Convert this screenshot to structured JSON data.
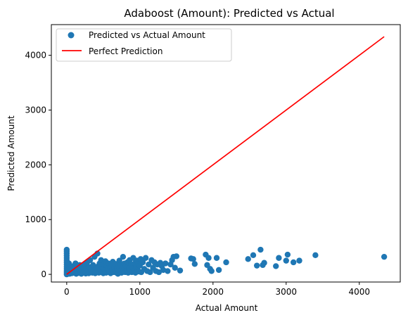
{
  "chart_data": {
    "type": "scatter",
    "title": "Adaboost (Amount): Predicted vs Actual",
    "xlabel": "Actual Amount",
    "ylabel": "Predicted Amount",
    "xlim": [
      -210,
      4560
    ],
    "ylim": [
      -140,
      4560
    ],
    "xticks": [
      0,
      1000,
      2000,
      3000,
      4000
    ],
    "yticks": [
      0,
      1000,
      2000,
      3000,
      4000
    ],
    "grid": false,
    "legend_position": "top-left",
    "series": [
      {
        "name": "Predicted vs Actual Amount",
        "kind": "scatter",
        "color": "#1f77b4",
        "points": [
          [
            0,
            0
          ],
          [
            0,
            30
          ],
          [
            0,
            60
          ],
          [
            0,
            100
          ],
          [
            0,
            140
          ],
          [
            0,
            180
          ],
          [
            0,
            220
          ],
          [
            0,
            260
          ],
          [
            0,
            300
          ],
          [
            0,
            340
          ],
          [
            0,
            380
          ],
          [
            0,
            420
          ],
          [
            0,
            450
          ],
          [
            10,
            15
          ],
          [
            20,
            80
          ],
          [
            30,
            200
          ],
          [
            40,
            10
          ],
          [
            50,
            40
          ],
          [
            60,
            120
          ],
          [
            70,
            20
          ],
          [
            80,
            60
          ],
          [
            90,
            150
          ],
          [
            100,
            30
          ],
          [
            110,
            90
          ],
          [
            120,
            200
          ],
          [
            130,
            10
          ],
          [
            140,
            50
          ],
          [
            150,
            120
          ],
          [
            160,
            25
          ],
          [
            170,
            80
          ],
          [
            180,
            170
          ],
          [
            190,
            40
          ],
          [
            200,
            10
          ],
          [
            210,
            60
          ],
          [
            220,
            130
          ],
          [
            230,
            30
          ],
          [
            240,
            80
          ],
          [
            250,
            180
          ],
          [
            260,
            15
          ],
          [
            270,
            100
          ],
          [
            280,
            220
          ],
          [
            290,
            60
          ],
          [
            300,
            20
          ],
          [
            310,
            130
          ],
          [
            320,
            260
          ],
          [
            330,
            40
          ],
          [
            340,
            90
          ],
          [
            350,
            30
          ],
          [
            360,
            170
          ],
          [
            370,
            60
          ],
          [
            380,
            320
          ],
          [
            390,
            20
          ],
          [
            400,
            110
          ],
          [
            410,
            50
          ],
          [
            420,
            380
          ],
          [
            430,
            150
          ],
          [
            440,
            30
          ],
          [
            450,
            200
          ],
          [
            460,
            80
          ],
          [
            470,
            260
          ],
          [
            480,
            40
          ],
          [
            490,
            120
          ],
          [
            500,
            20
          ],
          [
            510,
            180
          ],
          [
            520,
            70
          ],
          [
            530,
            240
          ],
          [
            540,
            30
          ],
          [
            550,
            150
          ],
          [
            560,
            90
          ],
          [
            570,
            200
          ],
          [
            580,
            50
          ],
          [
            590,
            130
          ],
          [
            600,
            20
          ],
          [
            610,
            170
          ],
          [
            620,
            80
          ],
          [
            630,
            230
          ],
          [
            640,
            40
          ],
          [
            650,
            120
          ],
          [
            660,
            60
          ],
          [
            670,
            190
          ],
          [
            680,
            30
          ],
          [
            690,
            100
          ],
          [
            700,
            10
          ],
          [
            710,
            150
          ],
          [
            720,
            250
          ],
          [
            730,
            60
          ],
          [
            740,
            180
          ],
          [
            750,
            30
          ],
          [
            760,
            120
          ],
          [
            770,
            320
          ],
          [
            780,
            80
          ],
          [
            790,
            200
          ],
          [
            800,
            40
          ],
          [
            810,
            150
          ],
          [
            820,
            60
          ],
          [
            830,
            220
          ],
          [
            840,
            30
          ],
          [
            850,
            110
          ],
          [
            860,
            260
          ],
          [
            870,
            70
          ],
          [
            880,
            180
          ],
          [
            890,
            40
          ],
          [
            900,
            120
          ],
          [
            910,
            300
          ],
          [
            920,
            60
          ],
          [
            930,
            200
          ],
          [
            940,
            30
          ],
          [
            950,
            140
          ],
          [
            960,
            250
          ],
          [
            970,
            80
          ],
          [
            980,
            190
          ],
          [
            990,
            50
          ],
          [
            1000,
            160
          ],
          [
            1010,
            280
          ],
          [
            1020,
            40
          ],
          [
            1040,
            220
          ],
          [
            1060,
            100
          ],
          [
            1080,
            300
          ],
          [
            1100,
            60
          ],
          [
            1120,
            180
          ],
          [
            1140,
            40
          ],
          [
            1160,
            260
          ],
          [
            1180,
            120
          ],
          [
            1200,
            220
          ],
          [
            1220,
            60
          ],
          [
            1240,
            180
          ],
          [
            1260,
            40
          ],
          [
            1280,
            210
          ],
          [
            1300,
            150
          ],
          [
            1320,
            80
          ],
          [
            1350,
            200
          ],
          [
            1380,
            60
          ],
          [
            1420,
            180
          ],
          [
            1440,
            260
          ],
          [
            1460,
            320
          ],
          [
            1480,
            120
          ],
          [
            1500,
            330
          ],
          [
            1550,
            70
          ],
          [
            1700,
            290
          ],
          [
            1730,
            280
          ],
          [
            1750,
            190
          ],
          [
            1900,
            360
          ],
          [
            1920,
            170
          ],
          [
            1940,
            300
          ],
          [
            1960,
            100
          ],
          [
            1980,
            60
          ],
          [
            2050,
            300
          ],
          [
            2080,
            80
          ],
          [
            2180,
            220
          ],
          [
            2480,
            280
          ],
          [
            2550,
            350
          ],
          [
            2600,
            160
          ],
          [
            2650,
            450
          ],
          [
            2680,
            170
          ],
          [
            2700,
            210
          ],
          [
            2860,
            150
          ],
          [
            2900,
            300
          ],
          [
            3000,
            250
          ],
          [
            3020,
            360
          ],
          [
            3100,
            220
          ],
          [
            3180,
            250
          ],
          [
            3400,
            350
          ],
          [
            4340,
            320
          ]
        ]
      },
      {
        "name": "Perfect Prediction",
        "kind": "line",
        "color": "#ff0000",
        "points": [
          [
            0,
            0
          ],
          [
            4340,
            4340
          ]
        ]
      }
    ]
  }
}
